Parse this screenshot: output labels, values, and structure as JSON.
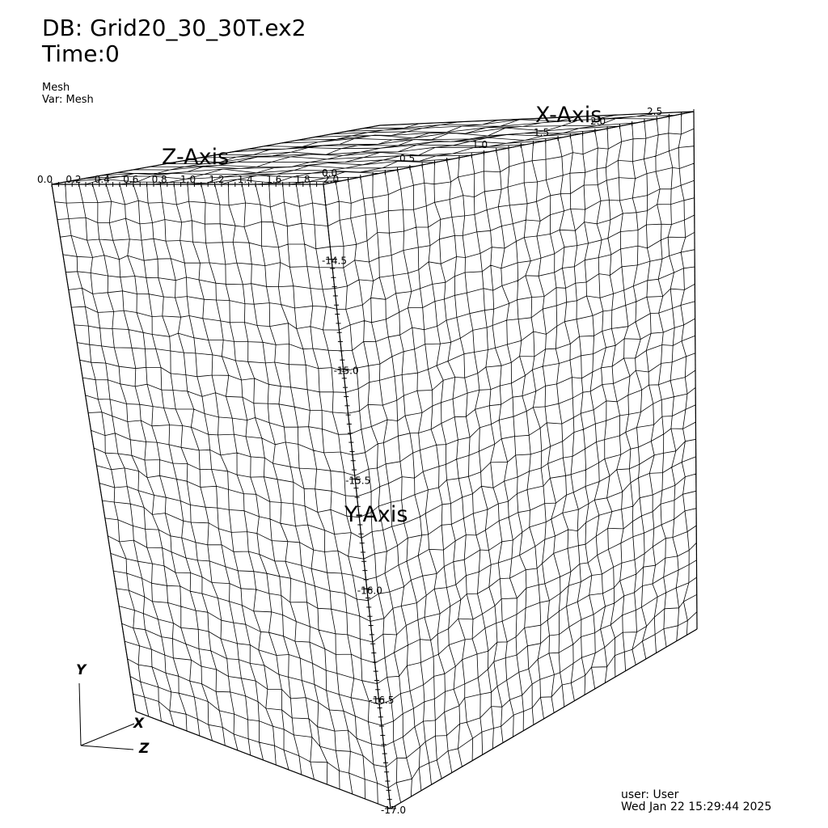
{
  "header": {
    "db": "DB: Grid20_30_30T.ex2",
    "time": "Time:0"
  },
  "plot_info": {
    "plot_type": "Mesh",
    "variable": "Var: Mesh"
  },
  "axes": {
    "x_title": "X-Axis",
    "y_title": "Y-Axis",
    "z_title": "Z-Axis",
    "x_ticks": [
      "0.0",
      "0.5",
      "1.0",
      "1.5",
      "2.0",
      "2.5"
    ],
    "y_ticks": [
      "-14.5",
      "-15.0",
      "-15.5",
      "-16.0",
      "-16.5",
      "-17.0"
    ],
    "z_ticks": [
      "0.0",
      "0.2",
      "0.4",
      "0.6",
      "0.8",
      "1.0",
      "1.2",
      "1.4",
      "1.6",
      "1.8",
      "2.0"
    ]
  },
  "triad": {
    "x_label": "X",
    "y_label": "Y",
    "z_label": "Z"
  },
  "footer": {
    "user": "user: User",
    "timestamp": "Wed Jan 22 15:29:44 2025"
  },
  "colors": {
    "background": "#ffffff",
    "mesh_lines": "#000000"
  }
}
